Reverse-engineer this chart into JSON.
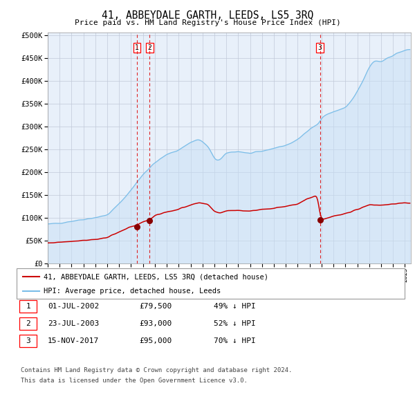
{
  "title": "41, ABBEYDALE GARTH, LEEDS, LS5 3RQ",
  "subtitle": "Price paid vs. HM Land Registry's House Price Index (HPI)",
  "legend_line1": "41, ABBEYDALE GARTH, LEEDS, LS5 3RQ (detached house)",
  "legend_line2": "HPI: Average price, detached house, Leeds",
  "footer1": "Contains HM Land Registry data © Crown copyright and database right 2024.",
  "footer2": "This data is licensed under the Open Government Licence v3.0.",
  "table": [
    {
      "num": "1",
      "date": "01-JUL-2002",
      "price": "£79,500",
      "pct": "49% ↓ HPI"
    },
    {
      "num": "2",
      "date": "23-JUL-2003",
      "price": "£93,000",
      "pct": "52% ↓ HPI"
    },
    {
      "num": "3",
      "date": "15-NOV-2017",
      "price": "£95,000",
      "pct": "70% ↓ HPI"
    }
  ],
  "sale1_date": 2002.5,
  "sale1_price": 79500,
  "sale2_date": 2003.56,
  "sale2_price": 93000,
  "sale3_date": 2017.875,
  "sale3_price": 95000,
  "hpi_color": "#7abde8",
  "hpi_fill_color": "#c8dff5",
  "red_color": "#cc0000",
  "dot_color": "#880000",
  "vline_color": "#dd0000",
  "background_color": "#e8f0fa",
  "grid_color": "#c0c8d8",
  "xmin": 1995,
  "xmax": 2025.5
}
